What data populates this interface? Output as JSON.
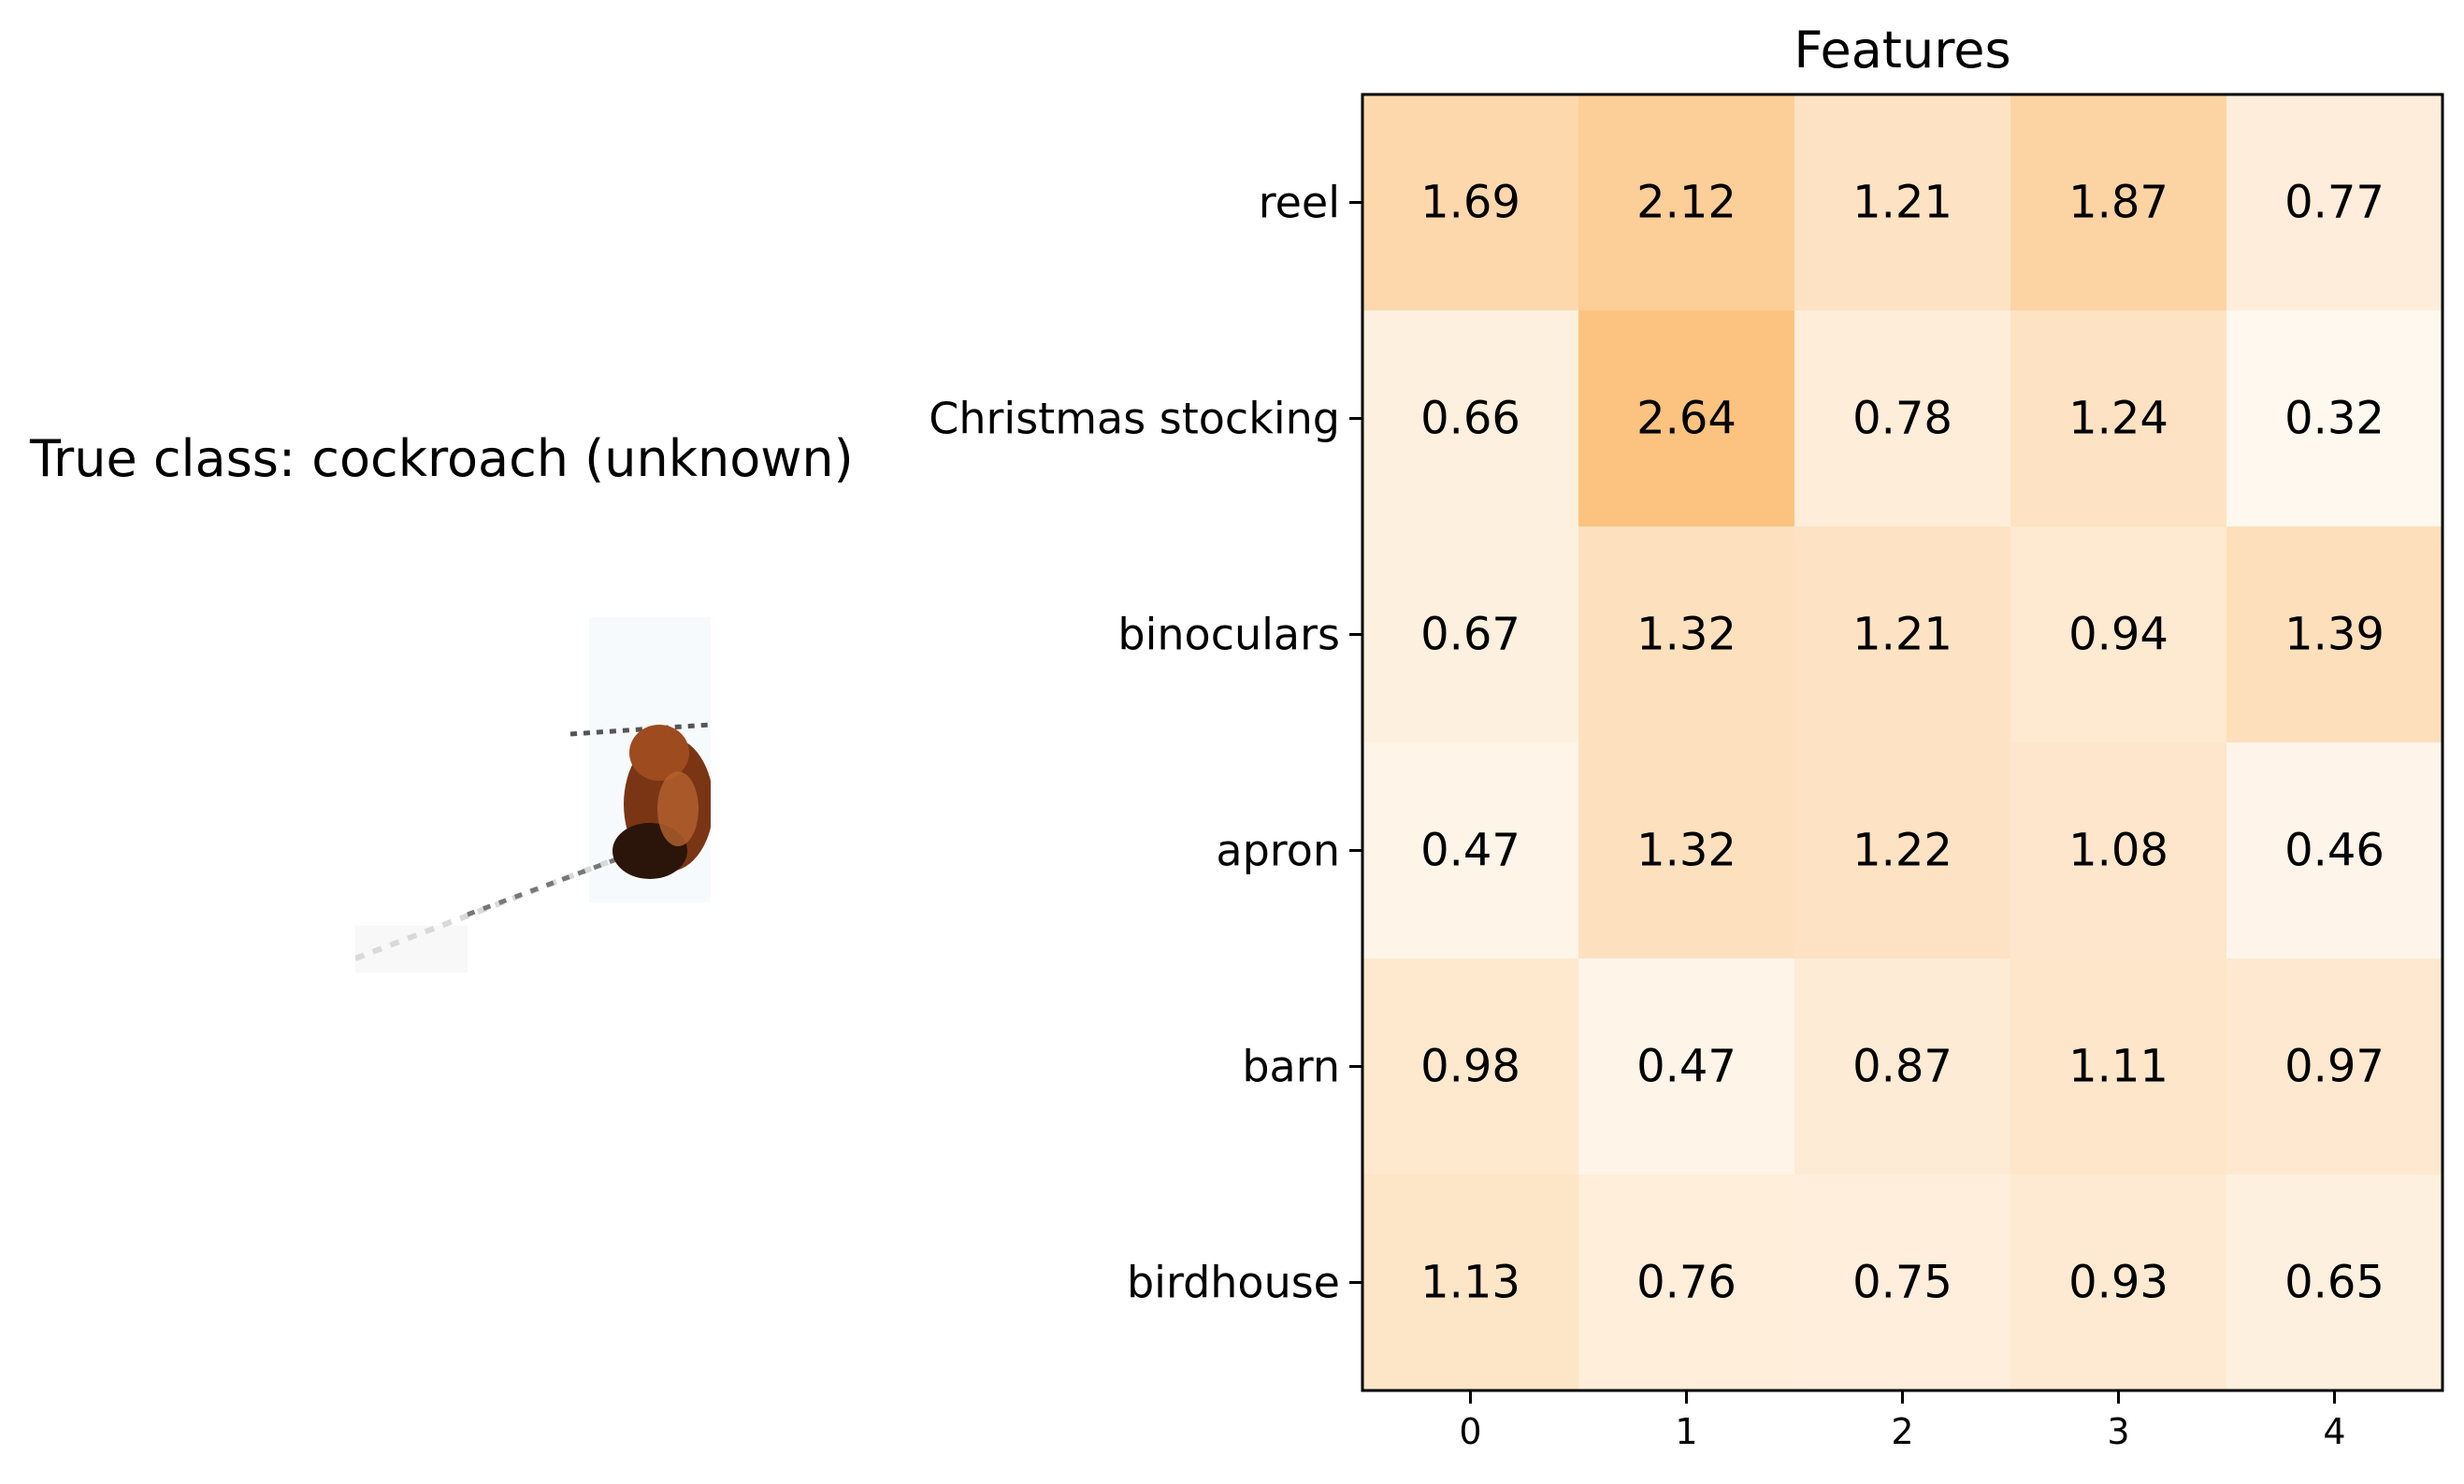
{
  "left_panel": {
    "title": "True class: cockroach (unknown)",
    "image_subject": "cockroach-photo"
  },
  "chart_data": {
    "type": "heatmap",
    "title": "Features",
    "xlabel": "",
    "ylabel": "",
    "x": [
      0,
      1,
      2,
      3,
      4
    ],
    "rows": [
      "reel",
      "Christmas stocking",
      "binoculars",
      "apron",
      "barn",
      "birdhouse"
    ],
    "values": [
      [
        1.69,
        2.12,
        1.21,
        1.87,
        0.77
      ],
      [
        0.66,
        2.64,
        0.78,
        1.24,
        0.32
      ],
      [
        0.67,
        1.32,
        1.21,
        0.94,
        1.39
      ],
      [
        0.47,
        1.32,
        1.22,
        1.08,
        0.46
      ],
      [
        0.98,
        0.47,
        0.87,
        1.11,
        0.97
      ],
      [
        1.13,
        0.76,
        0.75,
        0.93,
        0.65
      ]
    ],
    "value_range": [
      0,
      2.64
    ],
    "colors": {
      "low": "#ffffff",
      "high": "#f9a23a"
    },
    "grid": false
  }
}
